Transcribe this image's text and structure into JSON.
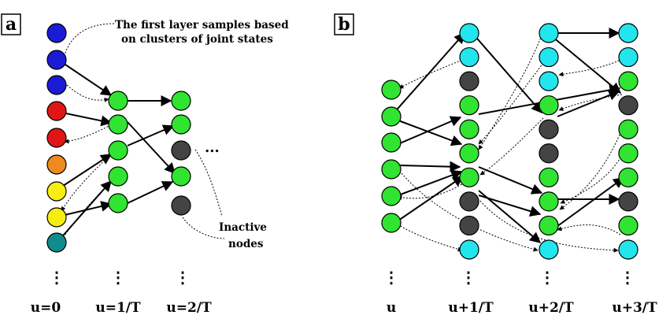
{
  "panels": [
    {
      "letter": "a",
      "annotation_top": [
        "The first layer samples based",
        "on clusters of joint states"
      ],
      "annotation_inactive": [
        "Inactive",
        "nodes"
      ],
      "ellipsis": "...",
      "column_labels": [
        "u=0",
        "u=1/T",
        "u=2/T"
      ],
      "columns": [
        [
          "blue",
          "blue",
          "blue",
          "red",
          "red",
          "orange",
          "yellow",
          "yellow",
          "teal"
        ],
        [
          "green",
          "green",
          "green",
          "green",
          "green"
        ],
        [
          "green",
          "green",
          "dark",
          "green",
          "dark"
        ]
      ]
    },
    {
      "letter": "b",
      "column_labels": [
        "u",
        "u+1/T",
        "u+2/T",
        "u+3/T"
      ],
      "columns": [
        [
          "green",
          "green",
          "green",
          "green",
          "green",
          "green"
        ],
        [
          "cyan",
          "cyan",
          "dark",
          "green",
          "green",
          "green",
          "green",
          "dark",
          "dark",
          "cyan"
        ],
        [
          "cyan",
          "cyan",
          "cyan",
          "green",
          "dark",
          "dark",
          "green",
          "green",
          "green",
          "cyan"
        ],
        [
          "cyan",
          "cyan",
          "green",
          "dark",
          "green",
          "green",
          "green",
          "dark",
          "green",
          "cyan"
        ]
      ]
    }
  ],
  "vertical_dots": "⋮",
  "colors": {
    "blue": "#1b1bd6",
    "red": "#e01616",
    "orange": "#ee8a1e",
    "yellow": "#f6ee10",
    "teal": "#0f8c8c",
    "green": "#31e431",
    "dark": "#444444",
    "cyan": "#22e6ee",
    "stroke": "#000000"
  }
}
